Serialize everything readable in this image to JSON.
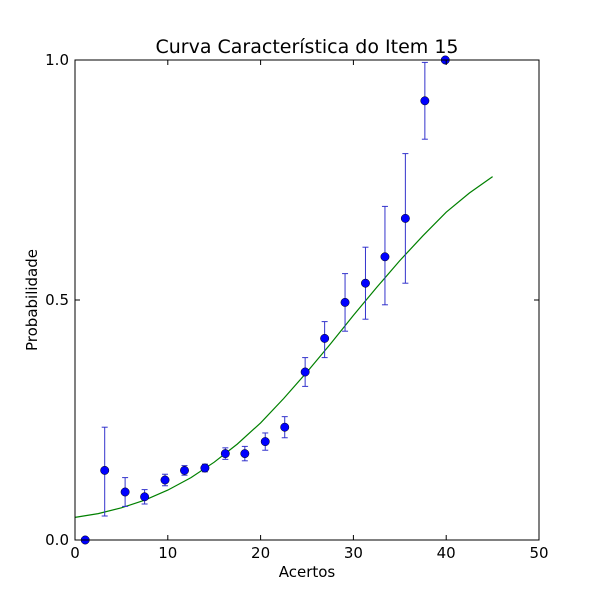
{
  "chart_data": {
    "type": "scatter",
    "title": "Curva Característica do Item 15",
    "xlabel": "Acertos",
    "ylabel": "Probabilidade",
    "xlim": [
      0,
      50
    ],
    "ylim": [
      0,
      1
    ],
    "x_ticks": [
      0,
      10,
      20,
      30,
      40,
      50
    ],
    "x_tick_labels": [
      "0",
      "10",
      "20",
      "30",
      "40",
      "50"
    ],
    "y_ticks": [
      0,
      0.5,
      1
    ],
    "y_tick_labels": [
      "0.0",
      "0.5",
      "1.0"
    ],
    "grid": false,
    "legend": "none",
    "colors": {
      "points": "#0000ff",
      "errorbars": "#3333cc",
      "curve": "#008000"
    },
    "series": [
      {
        "kind": "points-with-errorbars",
        "x": [
          1.1,
          3.2,
          5.4,
          7.5,
          9.7,
          11.8,
          14.0,
          16.2,
          18.3,
          20.5,
          22.6,
          24.8,
          26.9,
          29.1,
          31.3,
          33.4,
          35.6,
          37.7,
          39.9
        ],
        "y": [
          0.0,
          0.145,
          0.1,
          0.09,
          0.125,
          0.145,
          0.15,
          0.18,
          0.18,
          0.205,
          0.235,
          0.35,
          0.42,
          0.495,
          0.535,
          0.59,
          0.67,
          0.915,
          1.0
        ],
        "y_err_low": [
          0.0,
          0.095,
          0.03,
          0.015,
          0.012,
          0.01,
          0.008,
          0.012,
          0.015,
          0.018,
          0.022,
          0.03,
          0.04,
          0.06,
          0.075,
          0.1,
          0.135,
          0.08,
          0.0
        ],
        "y_err_high": [
          0.0,
          0.09,
          0.03,
          0.015,
          0.012,
          0.01,
          0.008,
          0.012,
          0.015,
          0.018,
          0.022,
          0.03,
          0.035,
          0.06,
          0.075,
          0.105,
          0.135,
          0.08,
          0.0
        ]
      },
      {
        "kind": "line",
        "x": [
          0,
          2.5,
          5,
          7.5,
          10,
          12.5,
          15,
          17.5,
          20,
          22.5,
          25,
          27.5,
          30,
          32.5,
          35,
          37.5,
          40,
          42.5,
          45
        ],
        "y": [
          0.047,
          0.055,
          0.067,
          0.083,
          0.104,
          0.13,
          0.162,
          0.2,
          0.244,
          0.295,
          0.35,
          0.408,
          0.468,
          0.526,
          0.582,
          0.634,
          0.683,
          0.723,
          0.757
        ]
      }
    ]
  }
}
